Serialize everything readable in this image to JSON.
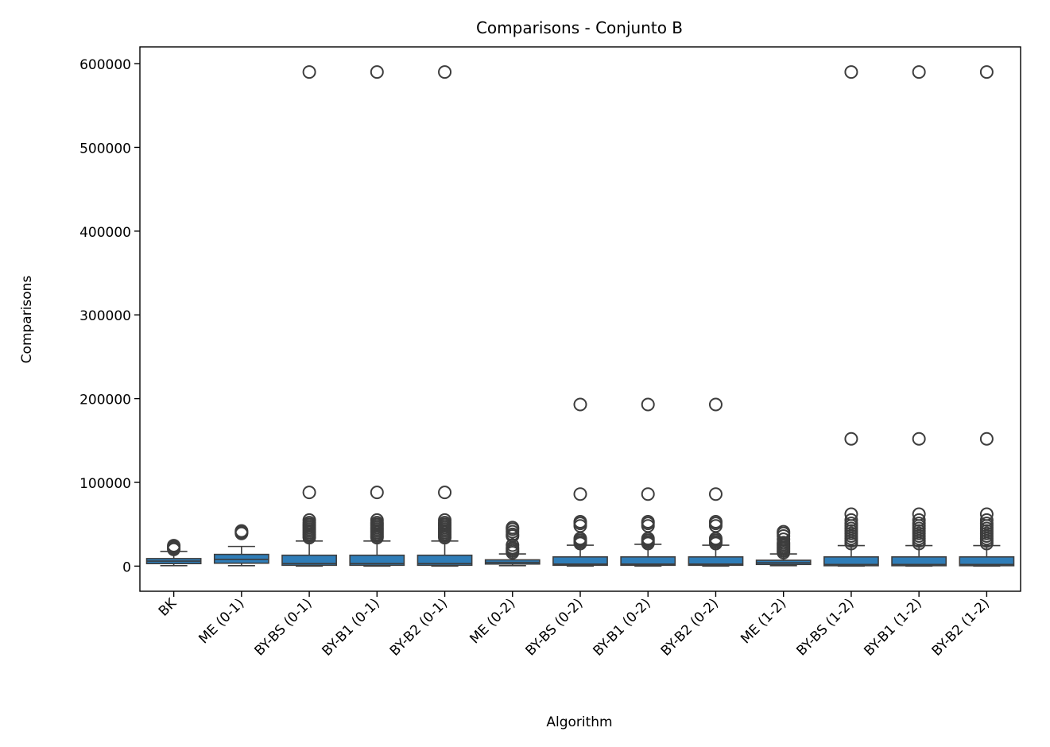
{
  "chart_data": {
    "type": "box",
    "title": "Comparisons - Conjunto B",
    "xlabel": "Algorithm",
    "ylabel": "Comparisons",
    "ylim": [
      -30000,
      620000
    ],
    "yticks": [
      0,
      100000,
      200000,
      300000,
      400000,
      500000,
      600000
    ],
    "ytick_labels": [
      "0",
      "100000",
      "200000",
      "300000",
      "400000",
      "500000",
      "600000"
    ],
    "grid": false,
    "box_color": "#2f7db8",
    "line_color": "#3d3d3d",
    "categories": [
      "BK",
      "ME (0-1)",
      "BY-BS (0-1)",
      "BY-B1 (0-1)",
      "BY-B2 (0-1)",
      "ME (0-2)",
      "BY-BS (0-2)",
      "BY-B1 (0-2)",
      "BY-B2 (0-2)",
      "ME (1-2)",
      "BY-BS (1-2)",
      "BY-B1 (1-2)",
      "BY-B2 (1-2)"
    ],
    "boxes": [
      {
        "whislo": 500,
        "q1": 3000,
        "med": 6000,
        "q3": 9000,
        "whishi": 17500,
        "fliers": [
          20000,
          21500,
          23000,
          24500
        ]
      },
      {
        "whislo": 500,
        "q1": 3500,
        "med": 8000,
        "q3": 14000,
        "whishi": 23500,
        "fliers": [
          39000,
          40000,
          41000,
          42000
        ]
      },
      {
        "whislo": 0,
        "q1": 1000,
        "med": 3000,
        "q3": 13000,
        "whishi": 30000,
        "fliers": [
          34000,
          36000,
          38000,
          40000,
          42000,
          44000,
          46000,
          48000,
          50000,
          52000,
          55000,
          88000,
          590000
        ]
      },
      {
        "whislo": 0,
        "q1": 1000,
        "med": 3000,
        "q3": 13000,
        "whishi": 30000,
        "fliers": [
          34000,
          36000,
          38000,
          40000,
          42000,
          44000,
          46000,
          48000,
          50000,
          52000,
          55000,
          88000,
          590000
        ]
      },
      {
        "whislo": 0,
        "q1": 1000,
        "med": 3000,
        "q3": 13000,
        "whishi": 30000,
        "fliers": [
          34000,
          36000,
          38000,
          40000,
          42000,
          44000,
          46000,
          48000,
          50000,
          52000,
          55000,
          88000,
          590000
        ]
      },
      {
        "whislo": 500,
        "q1": 2500,
        "med": 4500,
        "q3": 7500,
        "whishi": 14500,
        "fliers": [
          16000,
          18000,
          20000,
          22000,
          25000,
          36000,
          38000,
          41000,
          44000,
          46000
        ]
      },
      {
        "whislo": 0,
        "q1": 1000,
        "med": 2500,
        "q3": 11000,
        "whishi": 25000,
        "fliers": [
          27000,
          29000,
          31000,
          33000,
          48000,
          51000,
          53000,
          86000,
          193000
        ]
      },
      {
        "whislo": 0,
        "q1": 1000,
        "med": 2500,
        "q3": 11000,
        "whishi": 26000,
        "fliers": [
          27000,
          29000,
          31000,
          33000,
          48000,
          51000,
          53000,
          86000,
          193000
        ]
      },
      {
        "whislo": 0,
        "q1": 1000,
        "med": 2500,
        "q3": 11000,
        "whishi": 25000,
        "fliers": [
          27000,
          29000,
          31000,
          33000,
          48000,
          51000,
          53000,
          86000,
          193000
        ]
      },
      {
        "whislo": 500,
        "q1": 2000,
        "med": 4000,
        "q3": 7000,
        "whishi": 14500,
        "fliers": [
          16000,
          18000,
          20000,
          22000,
          24000,
          26000,
          28000,
          32000,
          36000,
          39000,
          41000
        ]
      },
      {
        "whislo": 0,
        "q1": 500,
        "med": 2000,
        "q3": 11000,
        "whishi": 24500,
        "fliers": [
          27000,
          30000,
          33000,
          36000,
          39000,
          42000,
          45000,
          48000,
          51000,
          55000,
          62000,
          152000,
          590000
        ]
      },
      {
        "whislo": 0,
        "q1": 500,
        "med": 2000,
        "q3": 11000,
        "whishi": 24500,
        "fliers": [
          27000,
          30000,
          33000,
          36000,
          39000,
          42000,
          45000,
          48000,
          51000,
          55000,
          62000,
          152000,
          590000
        ]
      },
      {
        "whislo": 0,
        "q1": 500,
        "med": 2000,
        "q3": 11000,
        "whishi": 24500,
        "fliers": [
          27000,
          30000,
          33000,
          36000,
          39000,
          42000,
          45000,
          48000,
          51000,
          55000,
          62000,
          152000,
          590000
        ]
      }
    ]
  }
}
